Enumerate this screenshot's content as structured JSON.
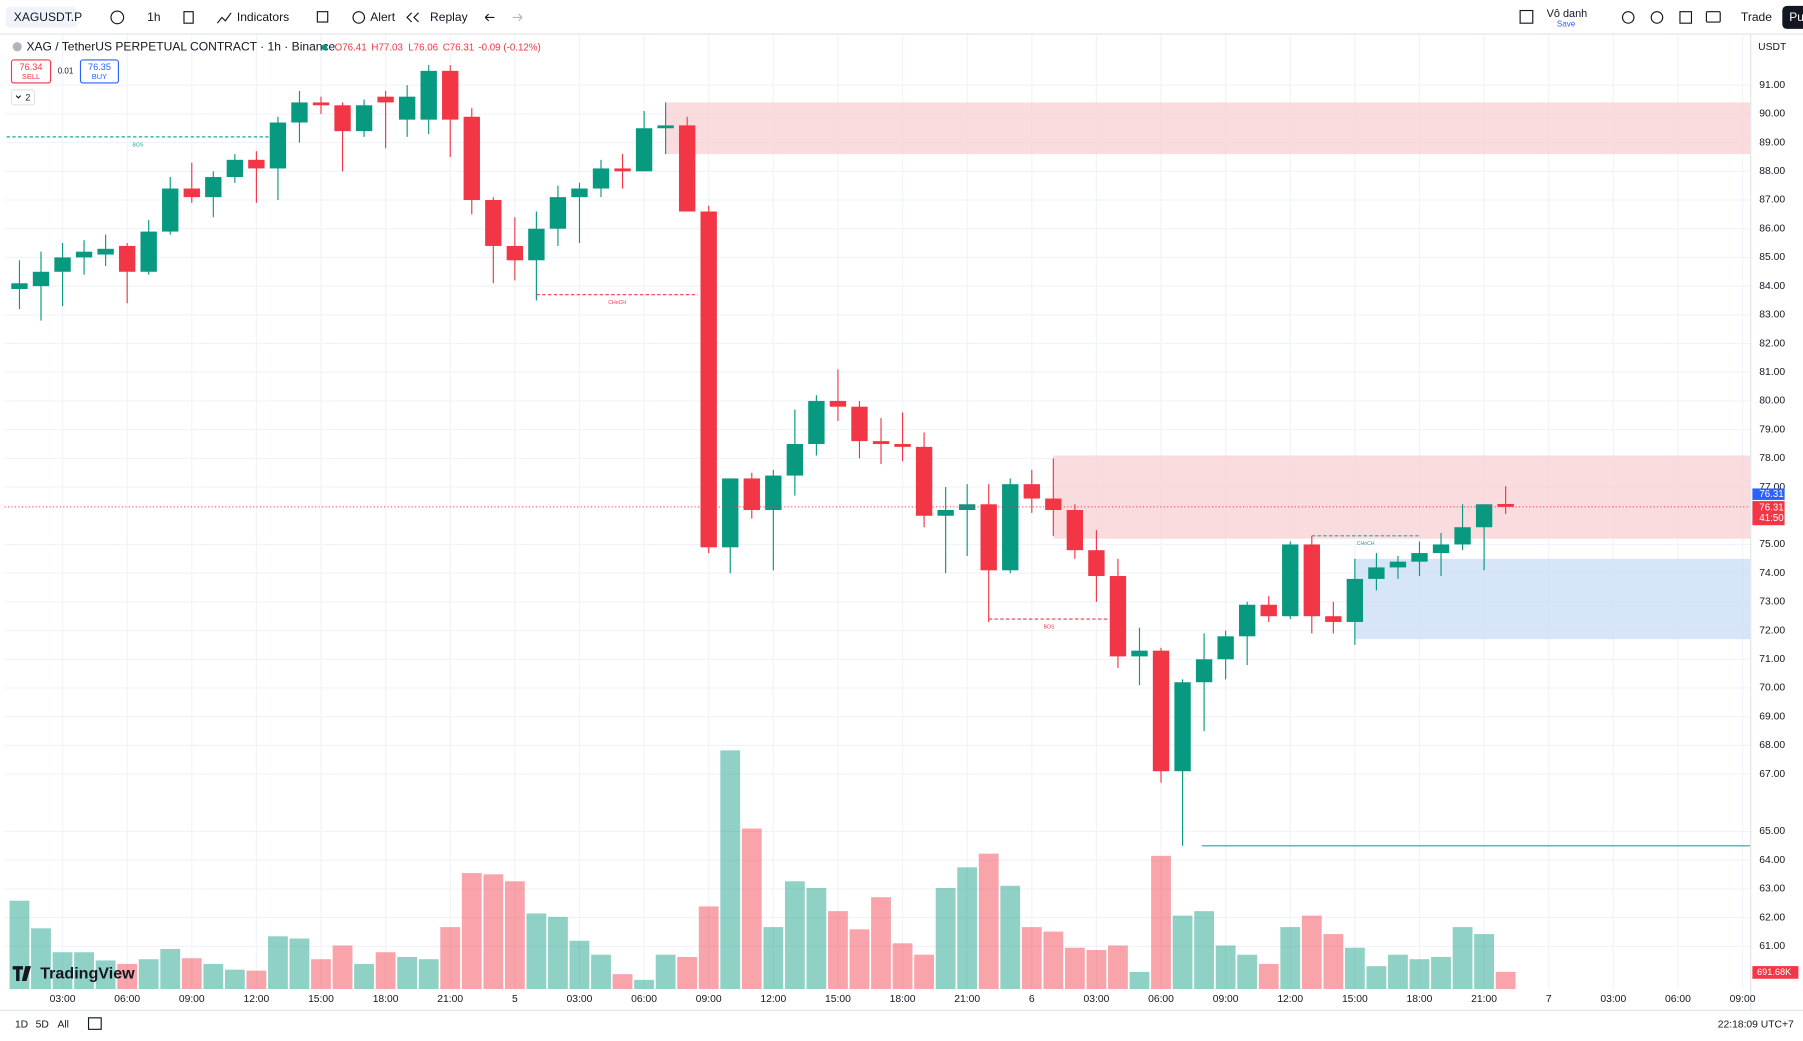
{
  "toolbar": {
    "symbol": "XAGUSDT.P",
    "interval": "1h",
    "indicators": "Indicators",
    "alert": "Alert",
    "replay": "Replay",
    "layout_name": "Vô danh",
    "save": "Save",
    "trade": "Trade",
    "publish": "Pu"
  },
  "legend": {
    "title": "XAG / TetherUS PERPETUAL CONTRACT · 1h · Binance",
    "open": "O76.41",
    "high": "H77.03",
    "low": "L76.06",
    "close": "C76.31",
    "change": "-0.09 (-0.12%)",
    "sell_price": "76.34",
    "sell": "SELL",
    "spread": "0.01",
    "buy_price": "76.35",
    "buy": "BUY",
    "indicators_count": "2"
  },
  "chart_data": {
    "type": "candlestick",
    "currency": "USDT",
    "up_color": "#089981",
    "down_color": "#f23645",
    "open": [
      83.9,
      84.0,
      84.5,
      85.0,
      85.1,
      85.4,
      84.5,
      85.9,
      87.4,
      87.1,
      87.8,
      88.4,
      88.1,
      89.7,
      90.4,
      90.3,
      89.4,
      90.6,
      89.8,
      89.8,
      91.5,
      89.9,
      87.0,
      85.4,
      84.9,
      86.0,
      87.1,
      87.4,
      88.1,
      88.0,
      89.5,
      89.6,
      86.6,
      74.9,
      77.3,
      76.2,
      77.4,
      78.5,
      80.0,
      79.8,
      78.6,
      78.5,
      78.4,
      76.0,
      76.2,
      76.4,
      74.1,
      77.1,
      76.6,
      76.2,
      74.8,
      73.9,
      71.1,
      71.3,
      67.1,
      70.2,
      71.0,
      71.8,
      72.9,
      72.5,
      75.0,
      72.5,
      72.3,
      73.8,
      74.2,
      74.4,
      74.7,
      75.0,
      75.6,
      76.41
    ],
    "high": [
      84.9,
      85.2,
      85.5,
      85.6,
      85.8,
      85.5,
      86.3,
      87.8,
      88.3,
      88.0,
      88.6,
      88.7,
      89.9,
      90.8,
      90.6,
      90.4,
      90.5,
      90.8,
      91.0,
      91.7,
      91.7,
      90.2,
      87.1,
      86.4,
      86.6,
      87.5,
      87.6,
      88.4,
      88.6,
      90.1,
      90.4,
      89.9,
      86.8,
      77.3,
      77.5,
      77.6,
      79.7,
      80.2,
      81.1,
      80.0,
      79.4,
      79.6,
      78.9,
      77.0,
      77.1,
      77.1,
      77.3,
      77.6,
      78.0,
      76.4,
      75.5,
      74.5,
      72.1,
      71.4,
      70.3,
      71.9,
      72.0,
      73.0,
      73.2,
      75.1,
      75.3,
      73.0,
      74.5,
      74.7,
      74.6,
      75.1,
      75.4,
      76.4,
      76.4,
      77.03
    ],
    "low": [
      83.2,
      82.8,
      83.3,
      84.4,
      84.7,
      83.4,
      84.4,
      85.8,
      86.9,
      86.4,
      87.6,
      86.9,
      87.0,
      89.0,
      90.0,
      88.0,
      89.2,
      88.8,
      89.2,
      89.3,
      88.5,
      86.5,
      84.1,
      84.2,
      83.5,
      85.4,
      85.5,
      87.1,
      87.4,
      88.0,
      88.6,
      86.6,
      74.7,
      74.0,
      75.9,
      74.1,
      76.7,
      78.1,
      79.3,
      78.0,
      77.8,
      77.9,
      75.6,
      74.0,
      74.6,
      72.3,
      74.0,
      76.1,
      75.3,
      74.5,
      73.0,
      70.7,
      70.1,
      66.7,
      64.5,
      68.5,
      70.3,
      70.8,
      72.3,
      72.4,
      71.9,
      71.9,
      71.5,
      73.4,
      73.8,
      73.9,
      73.9,
      74.8,
      74.1,
      76.06
    ],
    "close": [
      84.1,
      84.5,
      85.0,
      85.2,
      85.3,
      84.5,
      85.9,
      87.4,
      87.1,
      87.8,
      88.4,
      88.1,
      89.7,
      90.4,
      90.3,
      89.4,
      90.3,
      90.4,
      90.6,
      91.5,
      89.8,
      87.0,
      85.4,
      84.9,
      86.0,
      87.1,
      87.4,
      88.1,
      88.0,
      89.5,
      89.6,
      86.6,
      74.9,
      77.3,
      76.2,
      77.4,
      78.5,
      80.0,
      79.8,
      78.6,
      78.5,
      78.4,
      76.0,
      76.2,
      76.4,
      74.1,
      77.1,
      76.6,
      76.2,
      74.8,
      73.9,
      71.1,
      71.3,
      67.1,
      70.2,
      71.0,
      71.8,
      72.9,
      72.5,
      75.0,
      72.5,
      72.3,
      73.8,
      74.2,
      74.4,
      74.7,
      75.0,
      75.6,
      76.4,
      76.31
    ],
    "volume": [
      3550,
      2440,
      1480,
      1480,
      1150,
      1010,
      1200,
      1610,
      1240,
      1010,
      780,
      740,
      2120,
      2030,
      1200,
      1750,
      1010,
      1480,
      1290,
      1200,
      2490,
      4660,
      4610,
      4330,
      3040,
      2900,
      1940,
      1380,
      600,
      370,
      1380,
      1290,
      3320,
      9590,
      6450,
      2490,
      4330,
      4060,
      3130,
      2400,
      3690,
      1840,
      1380,
      4060,
      4890,
      5440,
      4150,
      2490,
      2310,
      1660,
      1570,
      1750,
      690,
      5350,
      2950,
      3130,
      1750,
      1380,
      1010,
      2490,
      2950,
      2210,
      1660,
      920,
      1380,
      1200,
      1290,
      2490,
      2210,
      691.68
    ],
    "last_volume_label": "691.68K",
    "volume_lim": [
      0,
      19400
    ],
    "xlim": [
      -0.69,
      80.35
    ],
    "xticks": [
      {
        "value": 2,
        "label": "03:00"
      },
      {
        "value": 5,
        "label": "06:00"
      },
      {
        "value": 8,
        "label": "09:00"
      },
      {
        "value": 11,
        "label": "12:00"
      },
      {
        "value": 14,
        "label": "15:00"
      },
      {
        "value": 17,
        "label": "18:00"
      },
      {
        "value": 20,
        "label": "21:00"
      },
      {
        "value": 23,
        "label": "5"
      },
      {
        "value": 26,
        "label": "03:00"
      },
      {
        "value": 29,
        "label": "06:00"
      },
      {
        "value": 32,
        "label": "09:00"
      },
      {
        "value": 35,
        "label": "12:00"
      },
      {
        "value": 38,
        "label": "15:00"
      },
      {
        "value": 41,
        "label": "18:00"
      },
      {
        "value": 44,
        "label": "21:00"
      },
      {
        "value": 47,
        "label": "6"
      },
      {
        "value": 50,
        "label": "03:00"
      },
      {
        "value": 53,
        "label": "06:00"
      },
      {
        "value": 56,
        "label": "09:00"
      },
      {
        "value": 59,
        "label": "12:00"
      },
      {
        "value": 62,
        "label": "15:00"
      },
      {
        "value": 65,
        "label": "18:00"
      },
      {
        "value": 68,
        "label": "21:00"
      },
      {
        "value": 71,
        "label": "7"
      },
      {
        "value": 74,
        "label": "03:00"
      },
      {
        "value": 77,
        "label": "06:00"
      },
      {
        "value": 80,
        "label": "09:00"
      }
    ],
    "ylim": [
      59.51,
      92.76
    ],
    "yticks": [
      {
        "value": 91,
        "label": "91.00"
      },
      {
        "value": 90,
        "label": "90.00"
      },
      {
        "value": 89,
        "label": "89.00"
      },
      {
        "value": 88,
        "label": "88.00"
      },
      {
        "value": 87,
        "label": "87.00"
      },
      {
        "value": 86,
        "label": "86.00"
      },
      {
        "value": 85,
        "label": "85.00"
      },
      {
        "value": 84,
        "label": "84.00"
      },
      {
        "value": 83,
        "label": "83.00"
      },
      {
        "value": 82,
        "label": "82.00"
      },
      {
        "value": 81,
        "label": "81.00"
      },
      {
        "value": 80,
        "label": "80.00"
      },
      {
        "value": 79,
        "label": "79.00"
      },
      {
        "value": 78,
        "label": "78.00"
      },
      {
        "value": 77,
        "label": "77.00"
      },
      {
        "value": 75,
        "label": "75.00"
      },
      {
        "value": 74,
        "label": "74.00"
      },
      {
        "value": 73,
        "label": "73.00"
      },
      {
        "value": 72,
        "label": "72.00"
      },
      {
        "value": 71,
        "label": "71.00"
      },
      {
        "value": 70,
        "label": "70.00"
      },
      {
        "value": 69,
        "label": "69.00"
      },
      {
        "value": 68,
        "label": "68.00"
      },
      {
        "value": 67,
        "label": "67.00"
      },
      {
        "value": 65,
        "label": "65.00"
      },
      {
        "value": 64,
        "label": "64.00"
      },
      {
        "value": 63,
        "label": "63.00"
      },
      {
        "value": 62,
        "label": "62.00"
      },
      {
        "value": 61,
        "label": "61.00"
      }
    ],
    "grid": true,
    "last_price": 76.31,
    "last_price_label": "76.31",
    "mark_price_label": "76.31",
    "countdown": "41:50",
    "zones": [
      {
        "x0": 30.0,
        "top": 90.4,
        "bottom": 88.6,
        "color": "#f8d0d3"
      },
      {
        "x0": 48.0,
        "top": 78.1,
        "bottom": 75.2,
        "color": "#f8d0d3"
      },
      {
        "x0": 62.0,
        "top": 74.5,
        "bottom": 71.7,
        "color": "#c9dcf7"
      }
    ],
    "levels": [
      {
        "label": "BOS",
        "price": 89.2,
        "x0": -0.6,
        "x1": 11.6,
        "color": "#26a69a",
        "dashed": true
      },
      {
        "label": "CHoCH",
        "price": 83.7,
        "x0": 24.0,
        "x1": 31.5,
        "color": "#f23645",
        "dashed": true
      },
      {
        "label": "BOS",
        "price": 72.4,
        "x0": 45.0,
        "x1": 50.6,
        "color": "#f23645",
        "dashed": true
      },
      {
        "label": "CHoCH",
        "price": 75.3,
        "x0": 60.0,
        "x1": 65.0,
        "color": "#26a69a",
        "dashed": true
      },
      {
        "price": 64.5,
        "x0": 54.9,
        "x1": 80.35,
        "color": "#26a69a",
        "dashed": false
      }
    ]
  },
  "watermark": "TradingView",
  "bottom_bar": {
    "range_1d": "1D",
    "range_5d": "5D",
    "range_all": "All",
    "clock": "22:18:09 UTC+7"
  }
}
